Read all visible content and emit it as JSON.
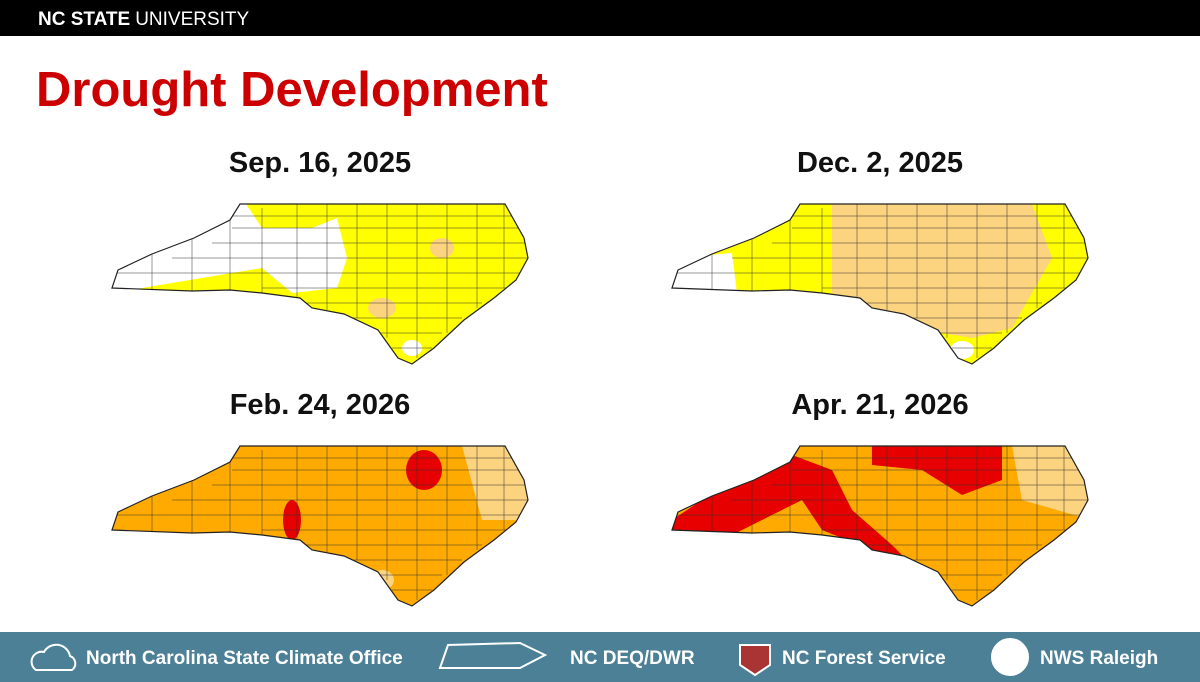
{
  "header": {
    "brand_bold": "NC STATE",
    "brand": "UNIVERSITY"
  },
  "title": "Drought Development",
  "maps": [
    {
      "date": "Sep. 16, 2025"
    },
    {
      "date": "Dec. 2, 2025"
    },
    {
      "date": "Feb. 24, 2026"
    },
    {
      "date": "Apr. 21, 2026"
    }
  ],
  "footer": {
    "items": [
      "North Carolina State Climate Office",
      "NC DEQ/DWR",
      "NC Forest Service",
      "NWS Raleigh"
    ]
  }
}
